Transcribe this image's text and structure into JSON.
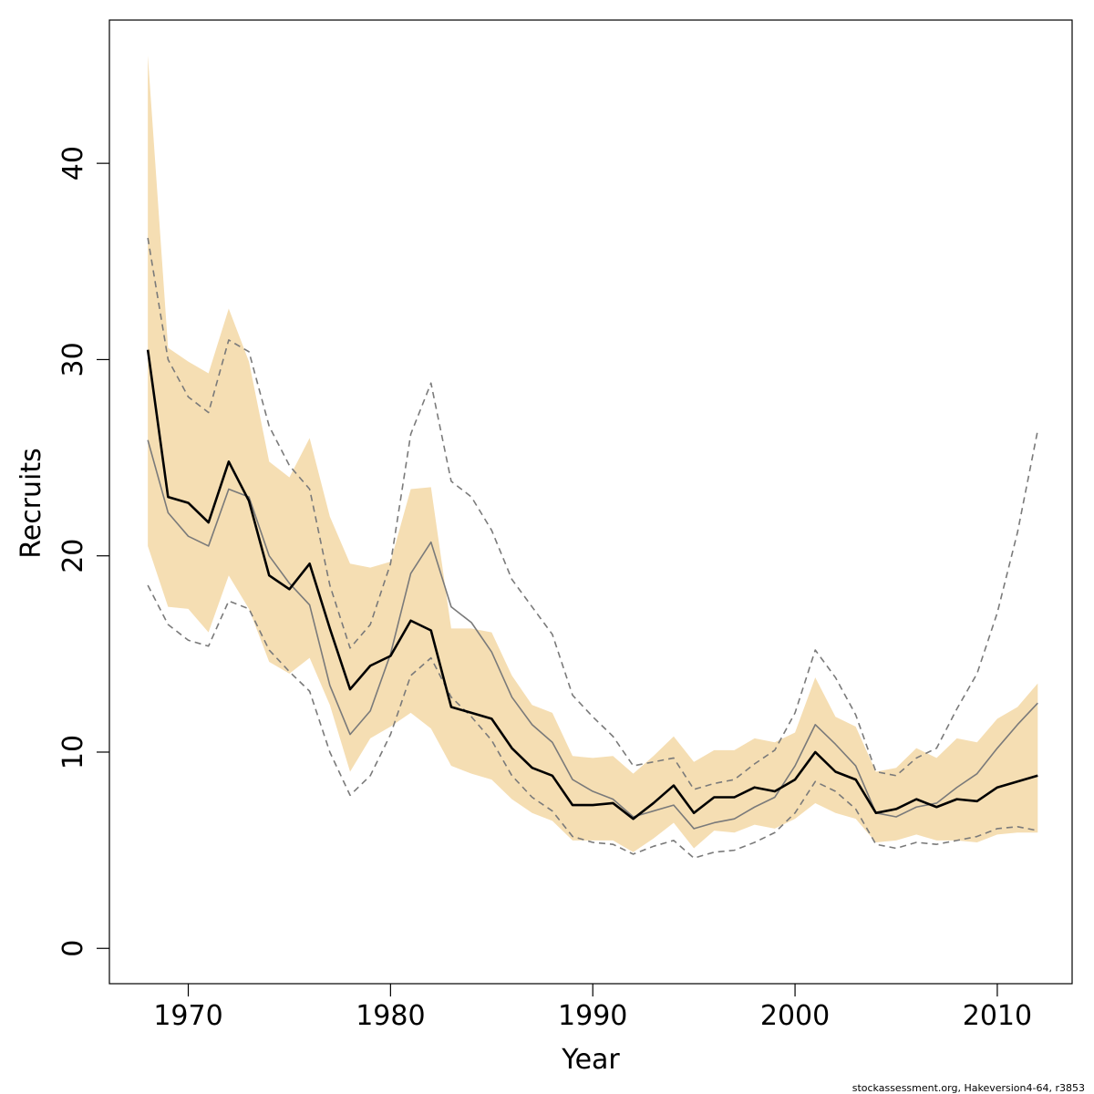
{
  "chart_data": {
    "type": "line",
    "xlabel": "Year",
    "ylabel": "Recruits",
    "xlim": [
      1966.1,
      2013.7
    ],
    "ylim": [
      -1.8,
      47.3
    ],
    "xticks": [
      1970,
      1980,
      1990,
      2000,
      2010
    ],
    "yticks": [
      0,
      10,
      20,
      30,
      40
    ],
    "grid": false,
    "colors": {
      "band": "#f5deb3",
      "central": "#000000",
      "median": "#7a7a7a",
      "dashed": "#7a7a7a",
      "axis": "#000000"
    },
    "x": [
      1968,
      1969,
      1970,
      1971,
      1972,
      1973,
      1974,
      1975,
      1976,
      1977,
      1978,
      1979,
      1980,
      1981,
      1982,
      1983,
      1984,
      1985,
      1986,
      1987,
      1988,
      1989,
      1990,
      1991,
      1992,
      1993,
      1994,
      1995,
      1996,
      1997,
      1998,
      1999,
      2000,
      2001,
      2002,
      2003,
      2004,
      2005,
      2006,
      2007,
      2008,
      2009,
      2010,
      2011,
      2012
    ],
    "band_upper": [
      45.5,
      30.6,
      29.9,
      29.3,
      32.6,
      29.9,
      24.8,
      24.0,
      26.0,
      22.0,
      19.6,
      19.4,
      19.7,
      23.4,
      23.5,
      16.3,
      16.3,
      16.1,
      13.9,
      12.4,
      12.0,
      9.8,
      9.7,
      9.8,
      8.9,
      9.8,
      10.8,
      9.5,
      10.1,
      10.1,
      10.7,
      10.5,
      11.0,
      13.8,
      11.8,
      11.3,
      9.0,
      9.2,
      10.2,
      9.7,
      10.7,
      10.5,
      11.7,
      12.3,
      13.5
    ],
    "band_lower": [
      20.5,
      17.4,
      17.3,
      16.1,
      19.0,
      17.3,
      14.6,
      14.0,
      14.8,
      12.4,
      9.0,
      10.7,
      11.3,
      12.0,
      11.2,
      9.3,
      8.9,
      8.6,
      7.6,
      6.9,
      6.5,
      5.5,
      5.5,
      5.5,
      4.9,
      5.6,
      6.4,
      5.1,
      6.0,
      5.9,
      6.3,
      6.1,
      6.6,
      7.4,
      6.9,
      6.6,
      5.4,
      5.5,
      5.8,
      5.5,
      5.5,
      5.4,
      5.8,
      5.9,
      5.9
    ],
    "series": [
      {
        "style": "solid-thick",
        "values": [
          30.5,
          23.0,
          22.7,
          21.7,
          24.8,
          22.8,
          19.0,
          18.3,
          19.6,
          16.3,
          13.2,
          14.4,
          14.9,
          16.7,
          16.2,
          12.3,
          12.0,
          11.7,
          10.2,
          9.2,
          8.8,
          7.3,
          7.3,
          7.4,
          6.6,
          7.4,
          8.3,
          6.9,
          7.7,
          7.7,
          8.2,
          8.0,
          8.6,
          10.0,
          9.0,
          8.6,
          6.9,
          7.1,
          7.6,
          7.2,
          7.6,
          7.5,
          8.2,
          8.5,
          8.8
        ]
      },
      {
        "style": "solid-thin",
        "values": [
          25.9,
          22.2,
          21.0,
          20.5,
          23.4,
          23.0,
          20.0,
          18.6,
          17.5,
          13.4,
          10.9,
          12.1,
          15.0,
          19.1,
          20.7,
          17.4,
          16.6,
          15.1,
          12.8,
          11.4,
          10.5,
          8.6,
          8.0,
          7.6,
          6.7,
          7.0,
          7.3,
          6.1,
          6.4,
          6.6,
          7.2,
          7.7,
          9.3,
          11.4,
          10.4,
          9.3,
          6.9,
          6.7,
          7.2,
          7.4,
          8.2,
          8.9,
          10.2,
          11.4,
          12.5
        ]
      },
      {
        "style": "dashed-upper",
        "values": [
          36.2,
          30.0,
          28.1,
          27.3,
          31.0,
          30.4,
          26.6,
          24.6,
          23.4,
          18.5,
          15.3,
          16.5,
          19.6,
          26.2,
          28.8,
          23.8,
          23.0,
          21.3,
          18.8,
          17.4,
          16.0,
          12.9,
          11.8,
          10.8,
          9.3,
          9.5,
          9.7,
          8.1,
          8.4,
          8.6,
          9.4,
          10.1,
          12.0,
          15.2,
          13.8,
          11.9,
          9.0,
          8.8,
          9.7,
          10.2,
          12.2,
          14.0,
          17.1,
          21.2,
          26.4
        ]
      },
      {
        "style": "dashed-lower",
        "values": [
          18.5,
          16.5,
          15.7,
          15.4,
          17.7,
          17.3,
          15.2,
          14.1,
          13.1,
          10.0,
          7.8,
          8.8,
          10.9,
          13.9,
          14.8,
          12.8,
          11.8,
          10.6,
          8.8,
          7.7,
          7.0,
          5.7,
          5.4,
          5.3,
          4.8,
          5.2,
          5.5,
          4.6,
          4.9,
          5.0,
          5.4,
          5.9,
          6.9,
          8.5,
          8.0,
          7.1,
          5.3,
          5.1,
          5.4,
          5.3,
          5.5,
          5.7,
          6.1,
          6.2,
          6.0
        ]
      }
    ]
  },
  "footer": {
    "credit": "stockassessment.org, Hakeversion4-64, r3853"
  }
}
